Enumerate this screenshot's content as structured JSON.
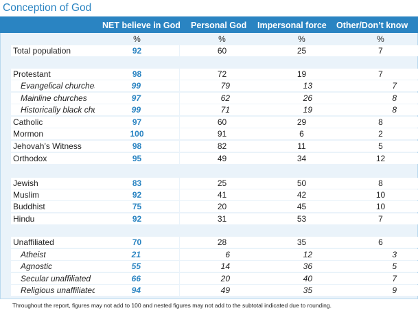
{
  "title": "Conception of God",
  "colors": {
    "accent": "#2a84c2",
    "panel": "#eaf3fa"
  },
  "columns": [
    "NET believe in God",
    "Personal God",
    "Impersonal force",
    "Other/Don’t know"
  ],
  "chart_data": {
    "type": "table",
    "title": "Conception of God",
    "columns": [
      "NET believe in God",
      "Personal God",
      "Impersonal force",
      "Other/Don’t know"
    ],
    "rows": [
      {
        "label": "",
        "values": [
          "%",
          "%",
          "%",
          "%"
        ],
        "kind": "unit"
      },
      {
        "label": "Total population",
        "values": [
          "92",
          "60",
          "25",
          "7"
        ],
        "kind": "main"
      },
      {
        "label": "Protestant",
        "values": [
          "98",
          "72",
          "19",
          "7"
        ],
        "kind": "main"
      },
      {
        "label": "Evangelical churches",
        "values": [
          "99",
          "79",
          "13",
          "7"
        ],
        "kind": "sub"
      },
      {
        "label": "Mainline churches",
        "values": [
          "97",
          "62",
          "26",
          "8"
        ],
        "kind": "sub"
      },
      {
        "label": "Historically black churches",
        "values": [
          "99",
          "71",
          "19",
          "8"
        ],
        "kind": "sub"
      },
      {
        "label": "Catholic",
        "values": [
          "97",
          "60",
          "29",
          "8"
        ],
        "kind": "main"
      },
      {
        "label": "Mormon",
        "values": [
          "100",
          "91",
          "6",
          "2"
        ],
        "kind": "main"
      },
      {
        "label": "Jehovah’s Witness",
        "values": [
          "98",
          "82",
          "11",
          "5"
        ],
        "kind": "main"
      },
      {
        "label": "Orthodox",
        "values": [
          "95",
          "49",
          "34",
          "12"
        ],
        "kind": "main"
      },
      {
        "label": "Jewish",
        "values": [
          "83",
          "25",
          "50",
          "8"
        ],
        "kind": "main"
      },
      {
        "label": "Muslim",
        "values": [
          "92",
          "41",
          "42",
          "10"
        ],
        "kind": "main"
      },
      {
        "label": "Buddhist",
        "values": [
          "75",
          "20",
          "45",
          "10"
        ],
        "kind": "main"
      },
      {
        "label": "Hindu",
        "values": [
          "92",
          "31",
          "53",
          "7"
        ],
        "kind": "main"
      },
      {
        "label": "Unaffiliated",
        "values": [
          "70",
          "28",
          "35",
          "6"
        ],
        "kind": "main"
      },
      {
        "label": "Atheist",
        "values": [
          "21",
          "6",
          "12",
          "3"
        ],
        "kind": "sub"
      },
      {
        "label": "Agnostic",
        "values": [
          "55",
          "14",
          "36",
          "5"
        ],
        "kind": "sub"
      },
      {
        "label": "Secular unaffiliated",
        "values": [
          "66",
          "20",
          "40",
          "7"
        ],
        "kind": "sub"
      },
      {
        "label": "Religious unaffiliated",
        "values": [
          "94",
          "49",
          "35",
          "9"
        ],
        "kind": "sub"
      }
    ]
  },
  "footnote": "Throughout the report, figures may not add to 100 and nested figures may not add to the subtotal indicated due to rounding."
}
